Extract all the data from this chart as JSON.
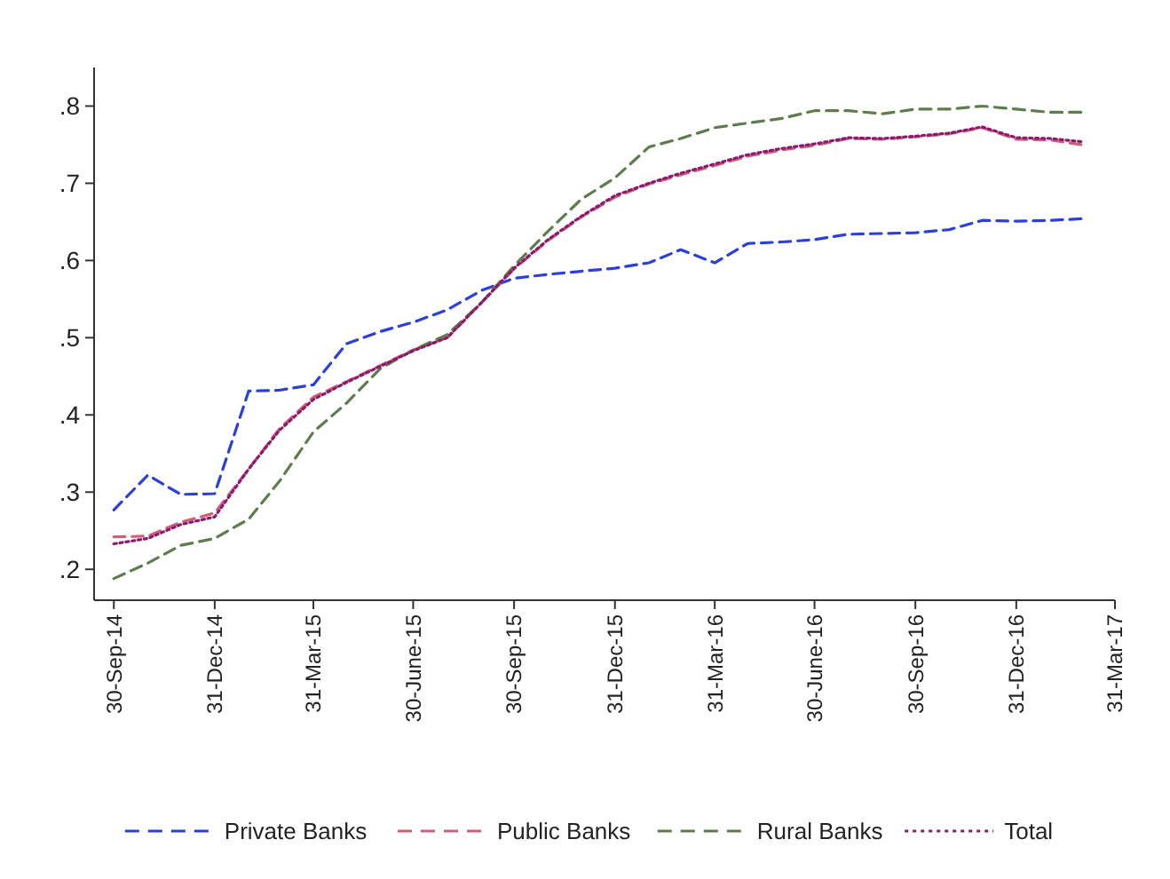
{
  "chart_data": {
    "type": "line",
    "x": [
      "2014-09-30",
      "2014-10-31",
      "2014-11-30",
      "2014-12-31",
      "2015-01-31",
      "2015-02-28",
      "2015-03-31",
      "2015-04-30",
      "2015-05-31",
      "2015-06-30",
      "2015-07-31",
      "2015-08-31",
      "2015-09-30",
      "2015-10-31",
      "2015-11-30",
      "2015-12-31",
      "2016-01-31",
      "2016-02-29",
      "2016-03-31",
      "2016-04-30",
      "2016-05-31",
      "2016-06-30",
      "2016-07-31",
      "2016-08-31",
      "2016-09-30",
      "2016-10-31",
      "2016-11-30",
      "2016-12-31",
      "2017-01-31",
      "2017-02-28"
    ],
    "series": [
      {
        "name": "Private Banks",
        "color": "#2b3fdc",
        "line_style": "dashed",
        "values": [
          0.277,
          0.322,
          0.297,
          0.298,
          0.431,
          0.432,
          0.439,
          0.492,
          0.508,
          0.52,
          0.536,
          0.561,
          0.577,
          0.582,
          0.586,
          0.59,
          0.597,
          0.614,
          0.597,
          0.622,
          0.624,
          0.627,
          0.634,
          0.635,
          0.636,
          0.64,
          0.652,
          0.651,
          0.652,
          0.654
        ]
      },
      {
        "name": "Public Banks",
        "color": "#d0607a",
        "line_style": "dashed",
        "values": [
          0.242,
          0.243,
          0.261,
          0.273,
          0.33,
          0.382,
          0.423,
          0.443,
          0.464,
          0.484,
          0.5,
          0.545,
          0.589,
          0.626,
          0.656,
          0.682,
          0.699,
          0.711,
          0.723,
          0.735,
          0.743,
          0.749,
          0.758,
          0.757,
          0.76,
          0.764,
          0.772,
          0.757,
          0.756,
          0.75
        ]
      },
      {
        "name": "Rural Banks",
        "color": "#5e7d4c",
        "line_style": "dashed",
        "values": [
          0.188,
          0.208,
          0.231,
          0.24,
          0.265,
          0.314,
          0.378,
          0.415,
          0.46,
          0.484,
          0.504,
          0.545,
          0.593,
          0.638,
          0.679,
          0.707,
          0.747,
          0.758,
          0.772,
          0.778,
          0.784,
          0.794,
          0.794,
          0.79,
          0.796,
          0.796,
          0.8,
          0.796,
          0.792,
          0.792
        ]
      },
      {
        "name": "Total",
        "color": "#8b1a6e",
        "line_style": "dotted",
        "values": [
          0.233,
          0.24,
          0.258,
          0.268,
          0.33,
          0.38,
          0.42,
          0.442,
          0.463,
          0.483,
          0.5,
          0.545,
          0.59,
          0.627,
          0.657,
          0.684,
          0.7,
          0.713,
          0.725,
          0.737,
          0.745,
          0.751,
          0.759,
          0.758,
          0.761,
          0.765,
          0.773,
          0.759,
          0.758,
          0.754
        ]
      }
    ],
    "xlim": [
      "2014-09-12",
      "2017-03-31"
    ],
    "xticks": [
      {
        "value": "2014-09-30",
        "label": "30-Sep-14"
      },
      {
        "value": "2014-12-31",
        "label": "31-Dec-14"
      },
      {
        "value": "2015-03-31",
        "label": "31-Mar-15"
      },
      {
        "value": "2015-06-30",
        "label": "30-June-15"
      },
      {
        "value": "2015-09-30",
        "label": "30-Sep-15"
      },
      {
        "value": "2015-12-31",
        "label": "31-Dec-15"
      },
      {
        "value": "2016-03-31",
        "label": "31-Mar-16"
      },
      {
        "value": "2016-06-30",
        "label": "30-June-16"
      },
      {
        "value": "2016-09-30",
        "label": "30-Sep-16"
      },
      {
        "value": "2016-12-31",
        "label": "31-Dec-16"
      },
      {
        "value": "2017-03-31",
        "label": "31-Mar-17"
      }
    ],
    "ylim": [
      0.16,
      0.85
    ],
    "yticks": [
      {
        "value": 0.2,
        "label": ".2"
      },
      {
        "value": 0.3,
        "label": ".3"
      },
      {
        "value": 0.4,
        "label": ".4"
      },
      {
        "value": 0.5,
        "label": ".5"
      },
      {
        "value": 0.6,
        "label": ".6"
      },
      {
        "value": 0.7,
        "label": ".7"
      },
      {
        "value": 0.8,
        "label": ".8"
      }
    ],
    "grid": false,
    "legend": "bottom",
    "marker": "none"
  }
}
